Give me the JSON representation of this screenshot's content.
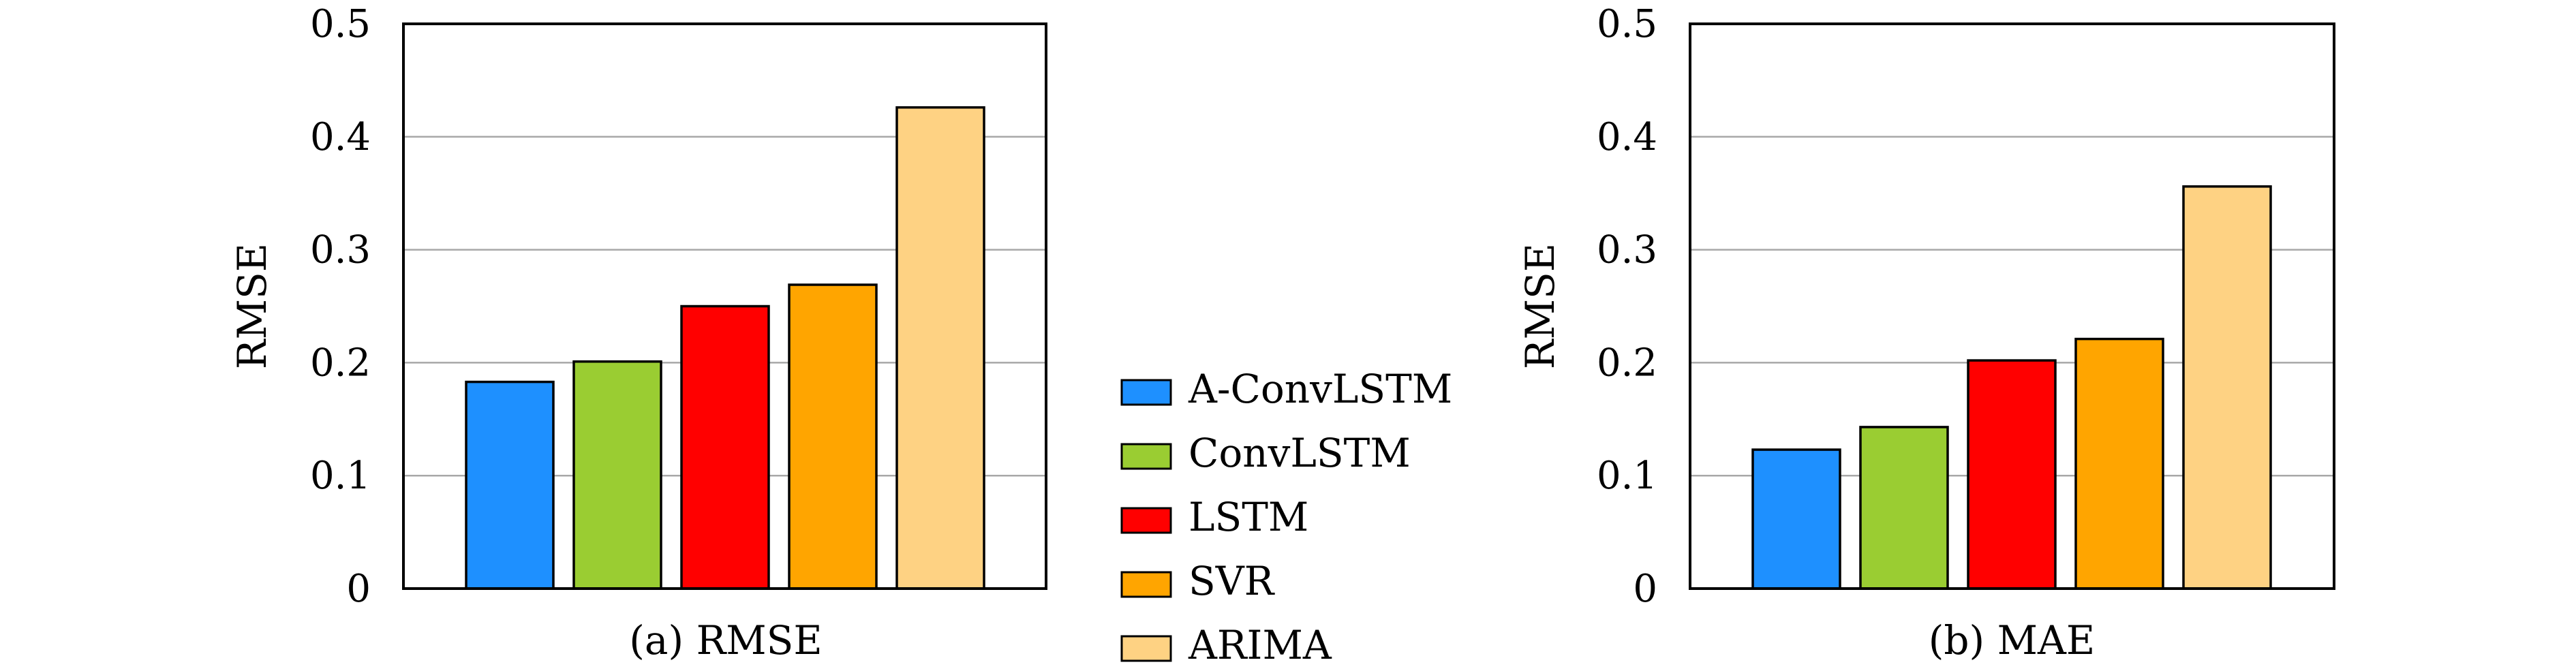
{
  "legend": {
    "entries": [
      "A-ConvLSTM",
      "ConvLSTM",
      "LSTM",
      "SVR",
      "ARIMA"
    ],
    "colors": [
      "#1e90ff",
      "#9acd32",
      "#ff0000",
      "#ffa500",
      "#fed283"
    ]
  },
  "chart_data": [
    {
      "type": "bar",
      "caption": "(a) RMSE",
      "ylabel": "RMSE",
      "categories": [
        "A-ConvLSTM",
        "ConvLSTM",
        "LSTM",
        "SVR",
        "ARIMA"
      ],
      "values": [
        0.183,
        0.201,
        0.25,
        0.269,
        0.426
      ],
      "ylim": [
        0,
        0.5
      ],
      "yticks": [
        "0",
        "0.1",
        "0.2",
        "0.3",
        "0.4",
        "0.5"
      ],
      "grid": true,
      "legend": "right"
    },
    {
      "type": "bar",
      "caption": "(b) MAE",
      "ylabel": "RMSE",
      "categories": [
        "A-ConvLSTM",
        "ConvLSTM",
        "LSTM",
        "SVR",
        "ARIMA"
      ],
      "values": [
        0.123,
        0.143,
        0.202,
        0.221,
        0.356
      ],
      "ylim": [
        0,
        0.5
      ],
      "yticks": [
        "0",
        "0.1",
        "0.2",
        "0.3",
        "0.4",
        "0.5"
      ],
      "grid": true,
      "legend": "left"
    }
  ]
}
